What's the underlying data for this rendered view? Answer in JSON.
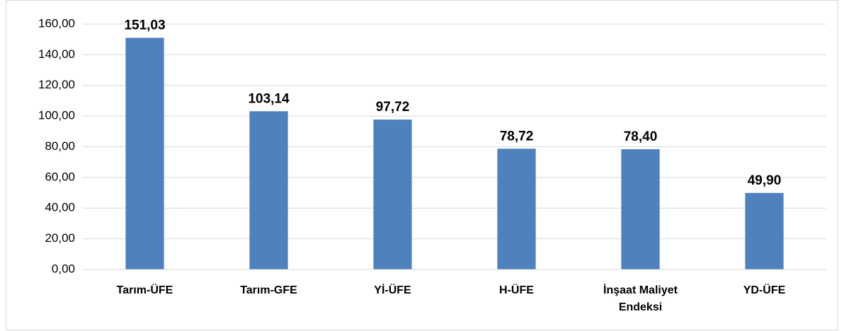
{
  "chart_data": {
    "type": "bar",
    "categories": [
      "Tarım-ÜFE",
      "Tarım-GFE",
      "Yİ-ÜFE",
      "H-ÜFE",
      "İnşaat Maliyet Endeksi",
      "YD-ÜFE"
    ],
    "values": [
      151.03,
      103.14,
      97.72,
      78.72,
      78.4,
      49.9
    ],
    "value_labels": [
      "151,03",
      "103,14",
      "97,72",
      "78,72",
      "78,40",
      "49,90"
    ],
    "color": "#4f81bd",
    "ylim": [
      0,
      160
    ],
    "yticks": [
      {
        "value": 0,
        "label": "0,00"
      },
      {
        "value": 20,
        "label": "20,00"
      },
      {
        "value": 40,
        "label": "40,00"
      },
      {
        "value": 60,
        "label": "60,00"
      },
      {
        "value": 80,
        "label": "80,00"
      },
      {
        "value": 100,
        "label": "100,00"
      },
      {
        "value": 120,
        "label": "120,00"
      },
      {
        "value": 140,
        "label": "140,00"
      },
      {
        "value": 160,
        "label": "160,00"
      }
    ],
    "grid": true
  }
}
